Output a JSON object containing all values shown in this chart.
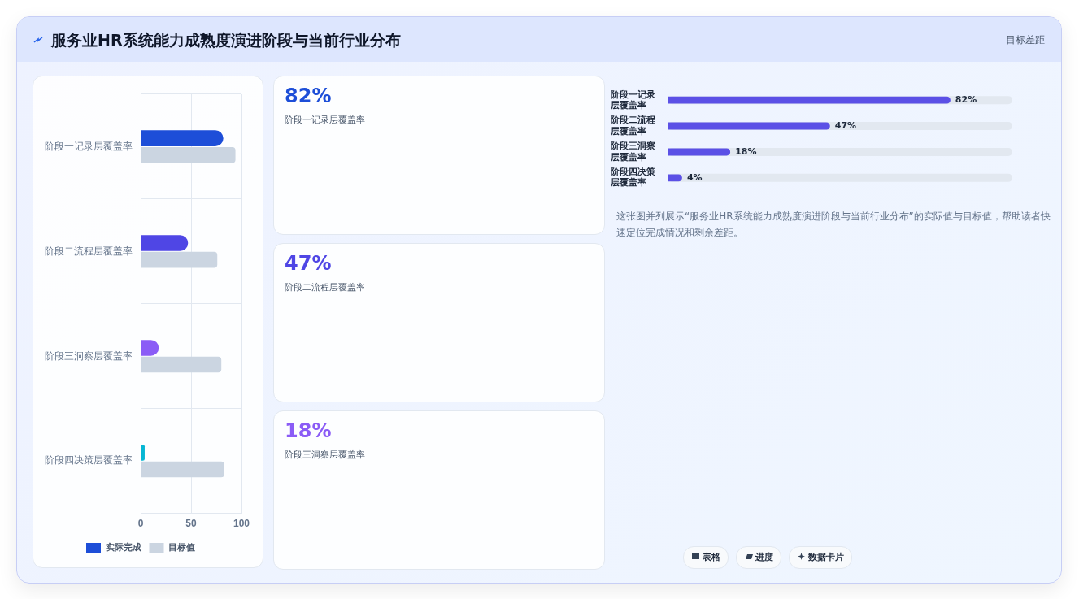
{
  "chart_data": [
    {
      "type": "bar",
      "title": "服务业HR系统能力成熟度演进阶段与当前行业分布",
      "orientation": "horizontal",
      "categories": [
        "阶段一记录层覆盖率",
        "阶段二流程层覆盖率",
        "阶段三洞察层覆盖率",
        "阶段四决策层覆盖率"
      ],
      "series": [
        {
          "name": "实际完成",
          "colors": [
            "#1d4ed8",
            "#4f46e5",
            "#8b5cf6",
            "#06b6d4"
          ],
          "values": [
            82,
            47,
            18,
            4
          ]
        },
        {
          "name": "目标值",
          "color": "#cbd5e1",
          "values": [
            94,
            76,
            80,
            83
          ]
        }
      ],
      "xlim": [
        0,
        100
      ],
      "xticks": [
        0,
        50,
        100
      ],
      "grid": true,
      "legend": "bottom",
      "annotations": [
        "目标差距"
      ]
    },
    {
      "type": "other",
      "annotations": [
        "82%",
        "阶段一记录层覆盖率",
        "47%",
        "阶段二流程层覆盖率",
        "18%",
        "阶段三洞察层覆盖率"
      ]
    },
    {
      "type": "bar",
      "orientation": "horizontal",
      "categories": [
        "阶段一记录层覆盖率",
        "阶段二流程层覆盖率",
        "阶段三洞察层覆盖率",
        "阶段四决策层覆盖率"
      ],
      "values": [
        82,
        47,
        18,
        4
      ],
      "value_labels": [
        "82%",
        "47%",
        "18%",
        "4%"
      ],
      "color": "#5b50e6",
      "xlim": [
        0,
        100
      ],
      "tick_labels": "y",
      "annotations": [
        "这张图并列展示“服务业HR系统能力成熟度演进阶段与当前行业分布”的实际值与目标值，帮助读者快速定位完成情况和剩余差距。",
        "表格",
        "进度",
        "数据卡片"
      ]
    }
  ]
}
